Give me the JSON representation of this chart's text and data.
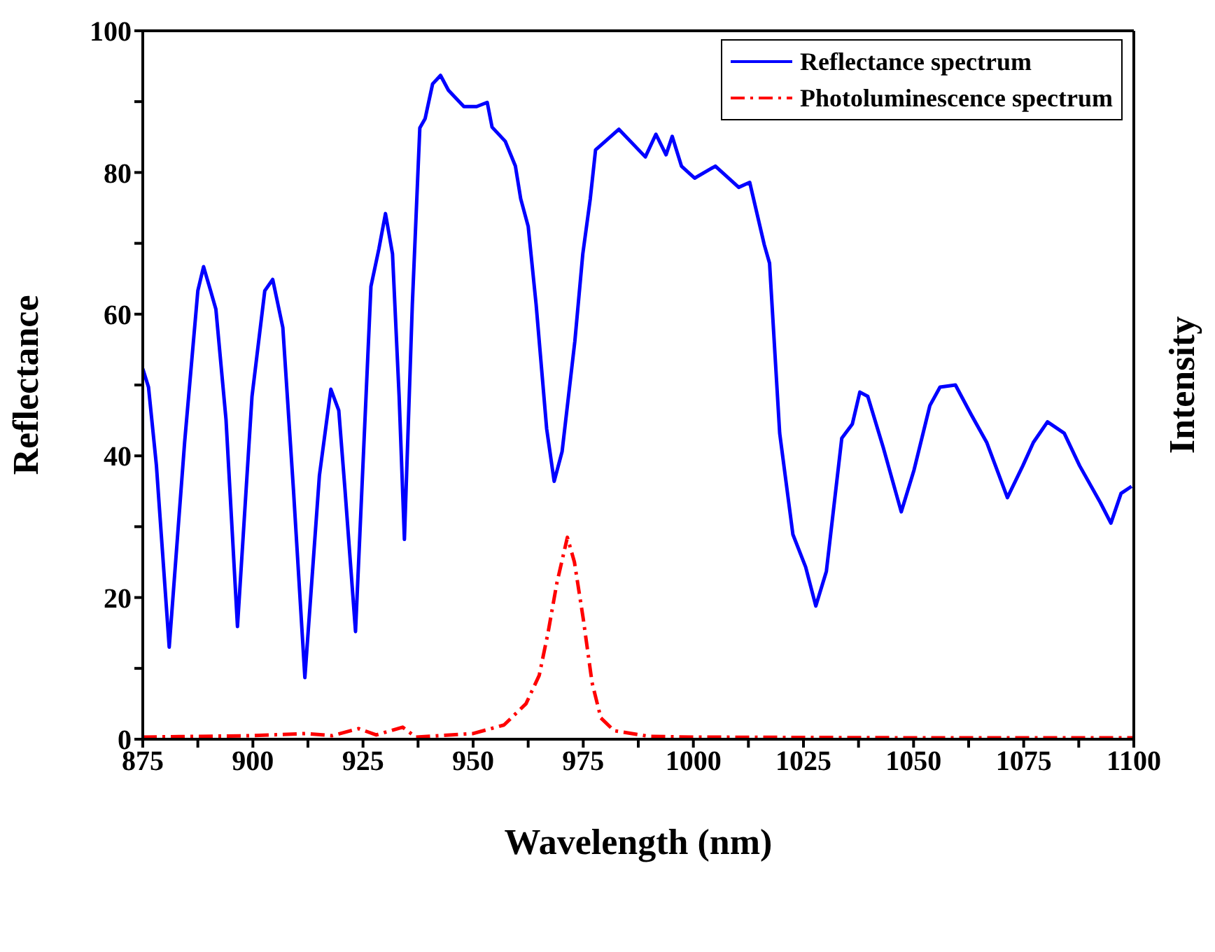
{
  "chart_data": {
    "type": "line",
    "xlabel": "Wavelength (nm)",
    "ylabel": "Reflectance",
    "y2label": "Intensity",
    "xlim": [
      875,
      1100
    ],
    "xticks": [
      875,
      {
        "value": 887.5,
        "label": null
      },
      900,
      {
        "value": 912.5,
        "label": null
      },
      925,
      {
        "value": 937.5,
        "label": null
      },
      950,
      {
        "value": 962.5,
        "label": null
      },
      975,
      {
        "value": 987.5,
        "label": null
      },
      1000,
      {
        "value": 1012.5,
        "label": null
      },
      1025,
      {
        "value": 1037.5,
        "label": null
      },
      1050,
      {
        "value": 1062.5,
        "label": null
      },
      1075,
      {
        "value": 1087.5,
        "label": null
      },
      1100
    ],
    "ylim": [
      0,
      100
    ],
    "yticks": [
      0,
      {
        "value": 10,
        "label": null
      },
      20,
      {
        "value": 30,
        "label": null
      },
      40,
      {
        "value": 50,
        "label": null
      },
      60,
      {
        "value": 70,
        "label": null
      },
      80,
      {
        "value": 90,
        "label": null
      },
      100
    ],
    "legend": "top right",
    "marker": "none",
    "series": [
      {
        "name": "Reflectance spectrum",
        "color": "#0000ff",
        "line_style": "solid",
        "x": [
          875,
          876.3,
          878.1,
          881,
          884.5,
          887.5,
          888.8,
          890.4,
          891.6,
          893.9,
          896.5,
          899.8,
          902.7,
          904.5,
          906.8,
          909.2,
          911.8,
          915.1,
          917.7,
          919.5,
          920.9,
          923.3,
          926.8,
          928.6,
          930.1,
          931.7,
          933.2,
          934.4,
          936.2,
          937.9,
          939.1,
          940.8,
          942.6,
          944.4,
          947.9,
          950.8,
          953.2,
          954.3,
          957.3,
          959.6,
          960.8,
          962.5,
          964.3,
          966.7,
          968.4,
          970.2,
          973.1,
          974.9,
          976.6,
          977.8,
          983.1,
          989.1,
          991.5,
          993.8,
          995.2,
          997.3,
          1000.3,
          1005,
          1010.3,
          1012.8,
          1016.1,
          1017.3,
          1019.6,
          1022.6,
          1025.5,
          1027.8,
          1030.2,
          1033.7,
          1036.1,
          1037.8,
          1039.6,
          1043.1,
          1047.2,
          1050.1,
          1053.7,
          1056,
          1059.5,
          1063.1,
          1066.6,
          1071.3,
          1074.8,
          1077.2,
          1080.4,
          1084.2,
          1087.7,
          1092.4,
          1094.8,
          1097.1,
          1099.5
        ],
        "values": [
          52.3,
          49.7,
          38.6,
          13,
          41.9,
          63.3,
          66.7,
          63.3,
          60.7,
          45.1,
          15.9,
          48.4,
          63.3,
          64.9,
          58.1,
          35.3,
          8.7,
          37.2,
          49.4,
          46.4,
          35.3,
          15.2,
          63.9,
          69.2,
          74.2,
          68.5,
          48.4,
          28.2,
          61.4,
          86.3,
          87.6,
          92.5,
          93.7,
          91.6,
          89.3,
          89.3,
          89.9,
          86.4,
          84.4,
          80.9,
          76.3,
          72.4,
          61.4,
          43.8,
          36.4,
          40.6,
          56.2,
          68.5,
          76.3,
          83.2,
          86.1,
          82.2,
          85.4,
          82.5,
          85.1,
          80.9,
          79.2,
          80.9,
          77.9,
          78.6,
          69.8,
          67.2,
          43.2,
          28.9,
          24.3,
          18.8,
          23.7,
          42.5,
          44.5,
          49,
          48.4,
          41.2,
          32.1,
          38,
          47.1,
          49.7,
          50,
          45.8,
          41.9,
          34.1,
          38.6,
          41.9,
          44.8,
          43.2,
          38.6,
          33.4,
          30.5,
          34.7,
          35.7
        ]
      },
      {
        "name": "Photoluminescence spectrum",
        "color": "#ff0000",
        "line_style": "dashed",
        "x": [
          875,
          900,
          912,
          918,
          924,
          928,
          934,
          937,
          950,
          957,
          962,
          965,
          967,
          969,
          971.4,
          973,
          975,
          977,
          979,
          982,
          990,
          1000,
          1050,
          1100
        ],
        "values": [
          0.3,
          0.5,
          0.8,
          0.5,
          1.5,
          0.6,
          1.7,
          0.3,
          0.8,
          2,
          5,
          9,
          15,
          22,
          28.5,
          25,
          17,
          8,
          3,
          1.2,
          0.4,
          0.3,
          0.2,
          0.2
        ]
      }
    ]
  }
}
